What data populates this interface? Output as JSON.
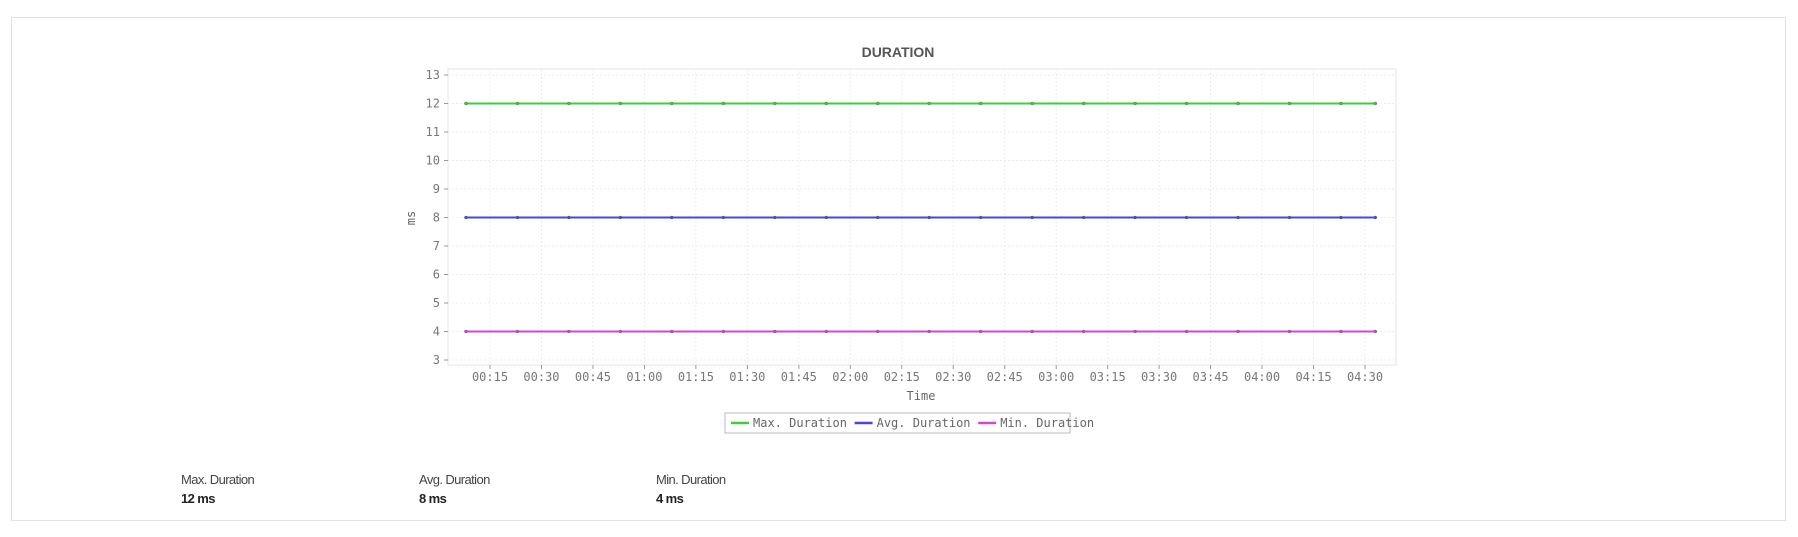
{
  "chart_data": {
    "type": "line",
    "title": "DURATION",
    "xlabel": "Time",
    "ylabel": "ms",
    "ylim": [
      3,
      13
    ],
    "yticks": [
      "3",
      "4",
      "5",
      "6",
      "7",
      "8",
      "9",
      "10",
      "11",
      "12",
      "13"
    ],
    "xticks": [
      "00:15",
      "00:30",
      "00:45",
      "01:00",
      "01:15",
      "01:30",
      "01:45",
      "02:00",
      "02:15",
      "02:30",
      "02:45",
      "03:00",
      "03:15",
      "03:30",
      "03:45",
      "04:00",
      "04:15",
      "04:30"
    ],
    "xlim": [
      "00:03",
      "04:40"
    ],
    "grid": true,
    "legend_position": "bottom",
    "x": [
      "00:08",
      "00:23",
      "00:38",
      "00:53",
      "01:08",
      "01:23",
      "01:38",
      "01:53",
      "02:08",
      "02:23",
      "02:38",
      "02:53",
      "03:08",
      "03:23",
      "03:38",
      "03:53",
      "04:08",
      "04:23",
      "04:33"
    ],
    "series": [
      {
        "name": "Max. Duration",
        "color": "#3fcc3f",
        "values": [
          12,
          12,
          12,
          12,
          12,
          12,
          12,
          12,
          12,
          12,
          12,
          12,
          12,
          12,
          12,
          12,
          12,
          12,
          12
        ]
      },
      {
        "name": "Avg. Duration",
        "color": "#4848d0",
        "values": [
          8,
          8,
          8,
          8,
          8,
          8,
          8,
          8,
          8,
          8,
          8,
          8,
          8,
          8,
          8,
          8,
          8,
          8,
          8
        ]
      },
      {
        "name": "Min. Duration",
        "color": "#d048d0",
        "values": [
          4,
          4,
          4,
          4,
          4,
          4,
          4,
          4,
          4,
          4,
          4,
          4,
          4,
          4,
          4,
          4,
          4,
          4,
          4
        ]
      }
    ]
  },
  "summary": [
    {
      "label": "Max. Duration",
      "value": "12 ms"
    },
    {
      "label": "Avg. Duration",
      "value": "8 ms"
    },
    {
      "label": "Min. Duration",
      "value": "4 ms"
    }
  ]
}
